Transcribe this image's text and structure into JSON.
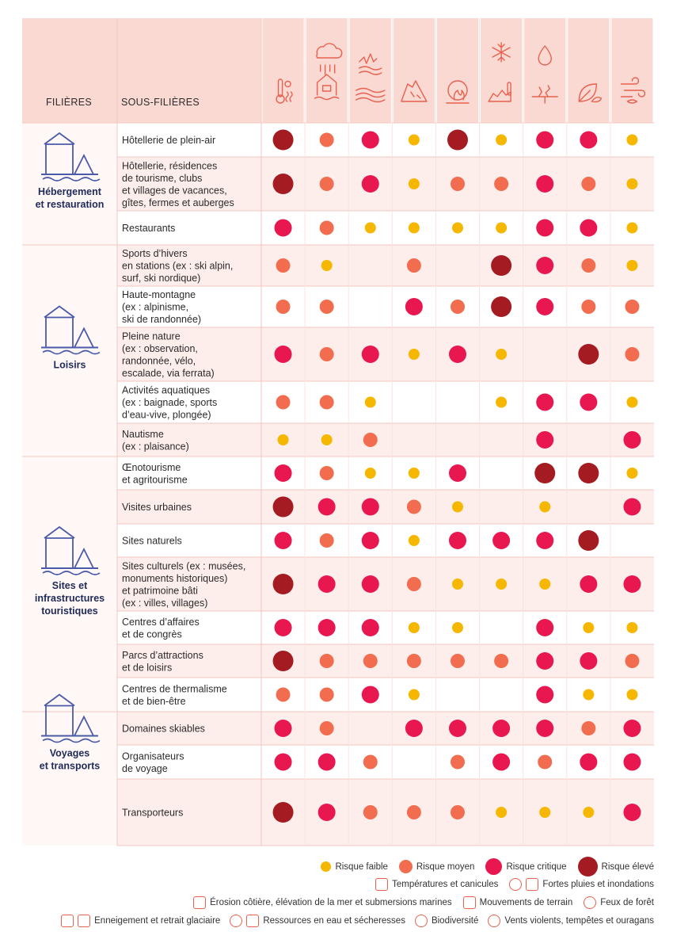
{
  "header": {
    "filieres_label": "FILIÈRES",
    "sous_filieres_label": "SOUS-FILIÈRES"
  },
  "colors": {
    "faible": "#f5b700",
    "moyen": "#f26d4f",
    "critique": "#e8174f",
    "eleve": "#a51b22",
    "header_bg": "#fbd9d3",
    "band_bg": "#fdeeeb",
    "icon_stroke": "#e8614f",
    "filiere_icon": "#4a5aa8"
  },
  "hazards": [
    {
      "icon": "thermometer-sun-icon"
    },
    {
      "icon": "rain-cloud-flooded-house-icon"
    },
    {
      "icon": "coastal-erosion-waves-icon"
    },
    {
      "icon": "landslide-icon"
    },
    {
      "icon": "forest-fire-icon"
    },
    {
      "icon": "snowflake-glacier-thermometer-icon"
    },
    {
      "icon": "water-drop-cracked-earth-icon"
    },
    {
      "icon": "leaf-biodiversity-icon"
    },
    {
      "icon": "wind-storm-icon"
    }
  ],
  "filieres": [
    {
      "label_lines": [
        "Hébergement",
        "et restauration"
      ],
      "icon": "hotel-camping-icon",
      "rows": [
        0,
        2
      ]
    },
    {
      "label_lines": [
        "Loisirs"
      ],
      "icon": "ferris-wheel-mountains-icon",
      "rows": [
        3,
        7
      ]
    },
    {
      "label_lines": [
        "Sites et",
        "infrastructures",
        "touristiques"
      ],
      "icon": "mountain-snorkel-bike-icon",
      "rows": [
        8,
        14
      ]
    },
    {
      "label_lines": [
        "Voyages",
        "et transports"
      ],
      "icon": "train-luggage-icon",
      "rows": [
        15,
        16
      ]
    }
  ],
  "chart_data": {
    "type": "table",
    "scale": {
      "f": "Risque faible",
      "m": "Risque moyen",
      "c": "Risque critique",
      "e": "Risque élevé"
    },
    "rows": [
      {
        "lines": [
          "Hôtellerie de plein-air"
        ],
        "risks": [
          "e",
          "m",
          "c",
          "f",
          "e",
          "f",
          "c",
          "c",
          "f"
        ]
      },
      {
        "lines": [
          "Hôtellerie, résidences",
          "de tourisme, clubs",
          "et villages de vacances,",
          "gîtes, fermes et auberges"
        ],
        "risks": [
          "e",
          "m",
          "c",
          "f",
          "m",
          "m",
          "c",
          "m",
          "f"
        ]
      },
      {
        "lines": [
          "Restaurants"
        ],
        "risks": [
          "c",
          "m",
          "f",
          "f",
          "f",
          "f",
          "c",
          "c",
          "f"
        ]
      },
      {
        "lines": [
          "Sports d’hivers",
          "en stations (ex : ski alpin,",
          "surf, ski nordique)"
        ],
        "risks": [
          "m",
          "f",
          "",
          "m",
          "",
          "e",
          "c",
          "m",
          "f"
        ]
      },
      {
        "lines": [
          "Haute-montagne",
          "(ex : alpinisme,",
          "ski de randonnée)"
        ],
        "risks": [
          "m",
          "m",
          "",
          "c",
          "m",
          "e",
          "c",
          "m",
          "m"
        ]
      },
      {
        "lines": [
          "Pleine nature",
          "(ex : observation,",
          "randonnée, vélo,",
          "escalade, via ferrata)"
        ],
        "risks": [
          "c",
          "m",
          "c",
          "f",
          "c",
          "f",
          "",
          "e",
          "m"
        ]
      },
      {
        "lines": [
          "Activités aquatiques",
          "(ex : baignade, sports",
          "d’eau-vive, plongée)"
        ],
        "risks": [
          "m",
          "m",
          "f",
          "",
          "",
          "f",
          "c",
          "c",
          "f"
        ]
      },
      {
        "lines": [
          "Nautisme",
          "(ex : plaisance)"
        ],
        "risks": [
          "f",
          "f",
          "m",
          "",
          "",
          "",
          "c",
          "",
          "c"
        ]
      },
      {
        "lines": [
          "Œnotourisme",
          "et agritourisme"
        ],
        "risks": [
          "c",
          "m",
          "f",
          "f",
          "c",
          "",
          "e",
          "e",
          "f"
        ]
      },
      {
        "lines": [
          "Visites urbaines"
        ],
        "risks": [
          "e",
          "c",
          "c",
          "m",
          "f",
          "",
          "f",
          "",
          "c"
        ]
      },
      {
        "lines": [
          "Sites naturels"
        ],
        "risks": [
          "c",
          "m",
          "c",
          "f",
          "c",
          "c",
          "c",
          "e",
          ""
        ]
      },
      {
        "lines": [
          "Sites culturels (ex : musées,",
          "monuments historiques)",
          "et patrimoine bâti",
          "(ex : villes, villages)"
        ],
        "risks": [
          "e",
          "c",
          "c",
          "m",
          "f",
          "f",
          "f",
          "c",
          "c"
        ]
      },
      {
        "lines": [
          "Centres d’affaires",
          "et de congrès"
        ],
        "risks": [
          "c",
          "c",
          "c",
          "f",
          "f",
          "",
          "c",
          "f",
          "f"
        ]
      },
      {
        "lines": [
          "Parcs d’attractions",
          "et de loisirs"
        ],
        "risks": [
          "e",
          "m",
          "m",
          "m",
          "m",
          "m",
          "c",
          "c",
          "m"
        ]
      },
      {
        "lines": [
          "Centres de thermalisme",
          "et de bien-être"
        ],
        "risks": [
          "m",
          "m",
          "c",
          "f",
          "",
          "",
          "c",
          "f",
          "f"
        ]
      },
      {
        "lines": [
          "Domaines skiables"
        ],
        "risks": [
          "c",
          "m",
          "",
          "c",
          "c",
          "c",
          "c",
          "m",
          "c"
        ]
      },
      {
        "lines": [
          "Organisateurs",
          "de voyage"
        ],
        "risks": [
          "c",
          "c",
          "m",
          "",
          "m",
          "c",
          "m",
          "c",
          "c"
        ]
      },
      {
        "lines": [
          "Transporteurs"
        ],
        "risks": [
          "e",
          "c",
          "m",
          "m",
          "m",
          "f",
          "f",
          "f",
          "c"
        ]
      }
    ]
  },
  "legend": {
    "levels": [
      {
        "key": "f",
        "label": "Risque faible"
      },
      {
        "key": "m",
        "label": "Risque moyen"
      },
      {
        "key": "c",
        "label": "Risque critique"
      },
      {
        "key": "e",
        "label": "Risque élevé"
      }
    ],
    "hazard_row1": [
      {
        "icon": "thermometer-sun-icon",
        "label": "Températures et canicules"
      },
      {
        "icon": "rain-cloud-flooded-house-icon",
        "label": "Fortes pluies et inondations"
      }
    ],
    "hazard_row2": [
      {
        "icon": "coastal-erosion-waves-icon",
        "label": "Érosion côtière, élévation de la mer et submersions marines"
      },
      {
        "icon": "landslide-icon",
        "label": "Mouvements de terrain"
      },
      {
        "icon": "forest-fire-icon",
        "label": "Feux de forêt"
      }
    ],
    "hazard_row3": [
      {
        "icon": "snowflake-glacier-icon",
        "label": "Enneigement et retrait glaciaire"
      },
      {
        "icon": "water-drop-cracked-earth-icon",
        "label": "Ressources en eau et sécheresses"
      },
      {
        "icon": "leaf-biodiversity-icon",
        "label": "Biodiversité"
      },
      {
        "icon": "wind-storm-icon",
        "label": "Vents violents, tempêtes et ouragans"
      }
    ]
  }
}
